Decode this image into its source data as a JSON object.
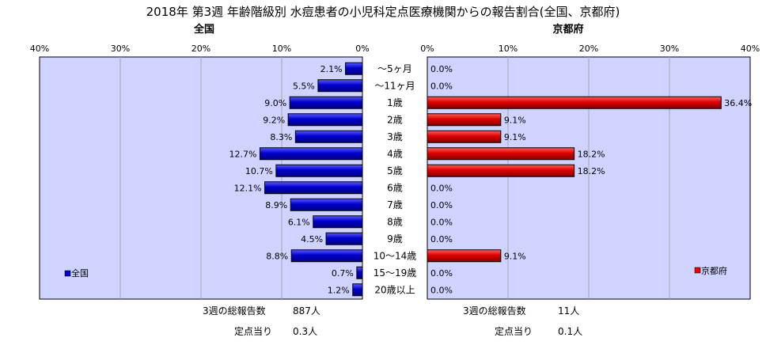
{
  "title": "2018年 第3週 年齢階級別 水痘患者の小児科定点医療機関からの報告割合(全国、京都府)",
  "colors": {
    "zenkoku": "#0000cc",
    "kyoto": "#ee0000",
    "plot_bg": "#cfd3ff"
  },
  "chart_data": [
    {
      "type": "bar",
      "orientation": "horizontal-left",
      "title": "全国",
      "categories": [
        "～5ヶ月",
        "～11ヶ月",
        "1歳",
        "2歳",
        "3歳",
        "4歳",
        "5歳",
        "6歳",
        "7歳",
        "8歳",
        "9歳",
        "10～14歳",
        "15～19歳",
        "20歳以上"
      ],
      "series": [
        {
          "name": "全国",
          "values": [
            2.1,
            5.5,
            9.0,
            9.2,
            8.3,
            12.7,
            10.7,
            12.1,
            8.9,
            6.1,
            4.5,
            8.8,
            0.7,
            1.2
          ],
          "labels": [
            "2.1%",
            "5.5%",
            "9.0%",
            "9.2%",
            "8.3%",
            "12.7%",
            "10.7%",
            "12.1%",
            "8.9%",
            "6.1%",
            "4.5%",
            "8.8%",
            "0.7%",
            "1.2%"
          ]
        }
      ],
      "xlim": [
        0,
        40
      ],
      "xticks": [
        "40%",
        "30%",
        "20%",
        "10%",
        "0%"
      ],
      "grid": true,
      "legend": "bottom-left"
    },
    {
      "type": "bar",
      "orientation": "horizontal-right",
      "title": "京都府",
      "categories": [
        "～5ヶ月",
        "～11ヶ月",
        "1歳",
        "2歳",
        "3歳",
        "4歳",
        "5歳",
        "6歳",
        "7歳",
        "8歳",
        "9歳",
        "10～14歳",
        "15～19歳",
        "20歳以上"
      ],
      "series": [
        {
          "name": "京都府",
          "values": [
            0.0,
            0.0,
            36.4,
            9.1,
            9.1,
            18.2,
            18.2,
            0.0,
            0.0,
            0.0,
            0.0,
            9.1,
            0.0,
            0.0
          ],
          "labels": [
            "0.0%",
            "0.0%",
            "36.4%",
            "9.1%",
            "9.1%",
            "18.2%",
            "18.2%",
            "0.0%",
            "0.0%",
            "0.0%",
            "0.0%",
            "9.1%",
            "0.0%",
            "0.0%"
          ]
        }
      ],
      "xlim": [
        0,
        40
      ],
      "xticks": [
        "0%",
        "10%",
        "20%",
        "30%",
        "40%"
      ],
      "grid": true,
      "legend": "bottom-right"
    }
  ],
  "footer": {
    "zenkoku": {
      "total_label": "3週の総報告数",
      "total_value": "887人",
      "per_label": "定点当り",
      "per_value": "0.3人"
    },
    "kyoto": {
      "total_label": "3週の総報告数",
      "total_value": "11人",
      "per_label": "定点当り",
      "per_value": "0.1人"
    }
  }
}
